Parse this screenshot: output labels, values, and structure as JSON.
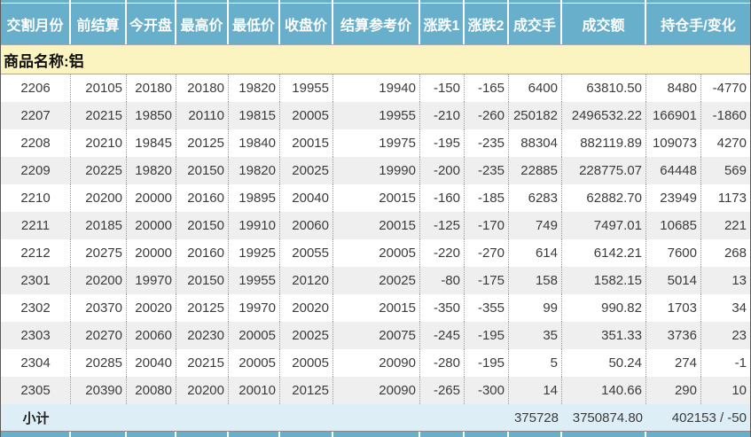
{
  "colors": {
    "header_bg": "#68afcb",
    "header_text": "#ffffff",
    "commodity_row_bg": "#fbf4c1",
    "row_stripe_bg": "#efefef",
    "subtotal_bg": "#ddeef6",
    "data_text": "#3b3b3b",
    "grid_dotted_line": "#999999"
  },
  "table": {
    "headers": [
      "交割月份",
      "前结算",
      "今开盘",
      "最高价",
      "最低价",
      "收盘价",
      "结算参考价",
      "涨跌1",
      "涨跌2",
      "成交手",
      "成交额",
      "持仓手/变化"
    ],
    "commodity_label": "商品名称:铝",
    "rows": [
      [
        "2206",
        "20105",
        "20180",
        "20180",
        "19820",
        "19955",
        "19940",
        "-150",
        "-165",
        "6400",
        "63810.50",
        "8480",
        "-4770"
      ],
      [
        "2207",
        "20215",
        "19850",
        "20110",
        "19815",
        "20005",
        "19955",
        "-210",
        "-260",
        "250182",
        "2496532.22",
        "166901",
        "-1860"
      ],
      [
        "2208",
        "20210",
        "19845",
        "20125",
        "19840",
        "20015",
        "19975",
        "-195",
        "-235",
        "88304",
        "882119.89",
        "109073",
        "4270"
      ],
      [
        "2209",
        "20225",
        "19820",
        "20150",
        "19820",
        "20025",
        "19990",
        "-200",
        "-235",
        "22885",
        "228775.07",
        "64448",
        "569"
      ],
      [
        "2210",
        "20200",
        "20000",
        "20160",
        "19895",
        "20040",
        "20015",
        "-160",
        "-185",
        "6283",
        "62882.70",
        "23949",
        "1173"
      ],
      [
        "2211",
        "20185",
        "20000",
        "20150",
        "19910",
        "20060",
        "20015",
        "-125",
        "-170",
        "749",
        "7497.01",
        "10685",
        "221"
      ],
      [
        "2212",
        "20275",
        "20000",
        "20160",
        "19925",
        "20055",
        "20005",
        "-220",
        "-270",
        "614",
        "6142.21",
        "7600",
        "268"
      ],
      [
        "2301",
        "20200",
        "19970",
        "20150",
        "19955",
        "20120",
        "20025",
        "-80",
        "-175",
        "158",
        "1582.15",
        "5014",
        "13"
      ],
      [
        "2302",
        "20370",
        "20020",
        "20125",
        "19970",
        "20020",
        "20015",
        "-350",
        "-355",
        "99",
        "990.82",
        "1703",
        "34"
      ],
      [
        "2303",
        "20270",
        "20060",
        "20230",
        "20005",
        "20025",
        "20075",
        "-245",
        "-195",
        "35",
        "351.33",
        "3736",
        "23"
      ],
      [
        "2304",
        "20285",
        "20040",
        "20215",
        "20005",
        "20005",
        "20090",
        "-280",
        "-195",
        "5",
        "50.24",
        "274",
        "-1"
      ],
      [
        "2305",
        "20390",
        "20080",
        "20200",
        "20010",
        "20125",
        "20090",
        "-265",
        "-300",
        "14",
        "140.66",
        "290",
        "10"
      ]
    ],
    "subtotal": {
      "label": "小计",
      "volume": "375728",
      "turnover": "3750874.80",
      "open_interest_change": "402153 / -50"
    }
  }
}
